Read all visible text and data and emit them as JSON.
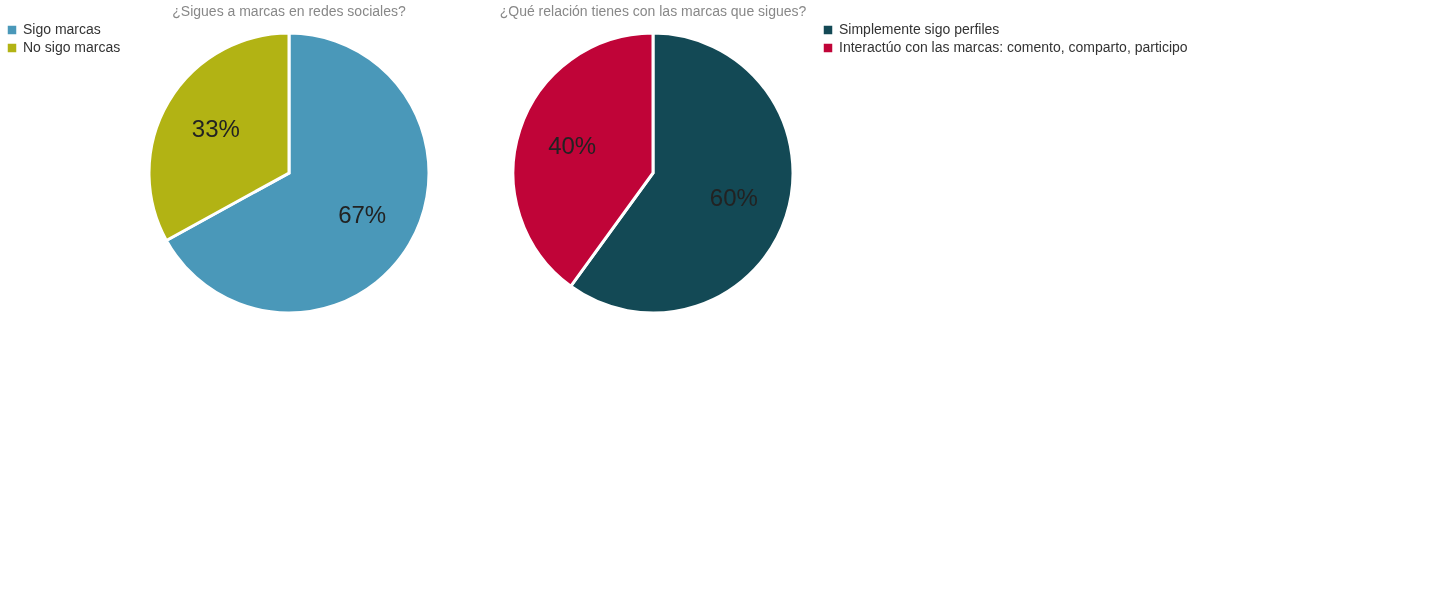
{
  "chart_data": [
    {
      "type": "pie",
      "title": "¿Sigues a marcas en redes sociales?",
      "categories": [
        "Sigo marcas",
        "No sigo marcas"
      ],
      "values": [
        67,
        33
      ],
      "colors": [
        "#4a98b9",
        "#b2b314"
      ],
      "value_labels": [
        "67%",
        "33%"
      ],
      "legend": "left"
    },
    {
      "type": "pie",
      "title": "¿Qué relación tienes con las marcas que sigues?",
      "categories": [
        "Simplemente sigo perfiles",
        "Interactúo con las marcas: comento, comparto, participo"
      ],
      "values": [
        60,
        40
      ],
      "colors": [
        "#134955",
        "#c00438"
      ],
      "value_labels": [
        "60%",
        "40%"
      ],
      "legend": "right"
    }
  ]
}
